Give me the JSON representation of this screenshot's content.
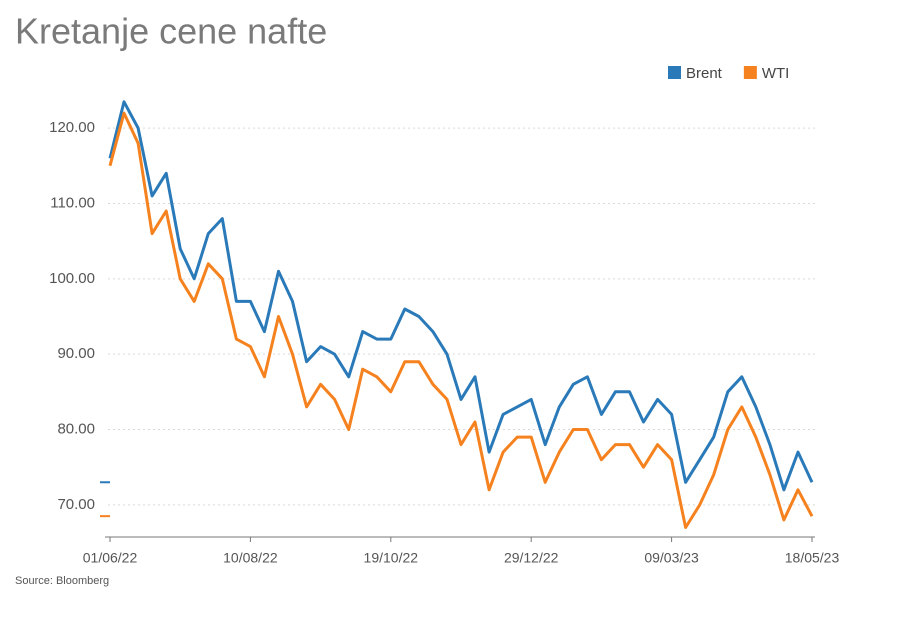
{
  "chart_data": {
    "type": "line",
    "title": "Kretanje cene nafte",
    "source": "Source: Bloomberg",
    "categories": [
      "01/06/22",
      null,
      null,
      null,
      null,
      null,
      null,
      null,
      null,
      null,
      "10/08/22",
      null,
      null,
      null,
      null,
      null,
      null,
      null,
      null,
      null,
      "19/10/22",
      null,
      null,
      null,
      null,
      null,
      null,
      null,
      null,
      null,
      "29/12/22",
      null,
      null,
      null,
      null,
      null,
      null,
      null,
      null,
      null,
      "09/03/23",
      null,
      null,
      null,
      null,
      null,
      null,
      null,
      null,
      null,
      "18/05/23"
    ],
    "series": [
      {
        "name": "Brent",
        "color": "#2a7ab9",
        "values": [
          116,
          123.5,
          120,
          111,
          114,
          104,
          100,
          106,
          108,
          97,
          97,
          93,
          101,
          97,
          89,
          91,
          90,
          87,
          93,
          92,
          92,
          96,
          95,
          93,
          90,
          84,
          87,
          77,
          82,
          83,
          84,
          78,
          83,
          86,
          87,
          82,
          85,
          85,
          81,
          84,
          82,
          73,
          76,
          79,
          85,
          87,
          83,
          78,
          72,
          77,
          73
        ]
      },
      {
        "name": "WTI",
        "color": "#f5821f",
        "values": [
          115,
          122,
          118,
          106,
          109,
          100,
          97,
          102,
          100,
          92,
          91,
          87,
          95,
          90,
          83,
          86,
          84,
          80,
          88,
          87,
          85,
          89,
          89,
          86,
          84,
          78,
          81,
          72,
          77,
          79,
          79,
          73,
          77,
          80,
          80,
          76,
          78,
          78,
          75,
          78,
          76,
          67,
          70,
          74,
          80,
          83,
          79,
          74,
          68,
          72,
          68.5
        ]
      }
    ],
    "ylim": [
      66,
      124
    ],
    "yticks": [
      {
        "value": 70,
        "label": "70.00"
      },
      {
        "value": 80,
        "label": "80.00"
      },
      {
        "value": 90,
        "label": "90.00"
      },
      {
        "value": 100,
        "label": "100.00"
      },
      {
        "value": 110,
        "label": "110.00"
      },
      {
        "value": 120,
        "label": "120.00"
      }
    ],
    "grid": true,
    "legend": "top-right"
  }
}
